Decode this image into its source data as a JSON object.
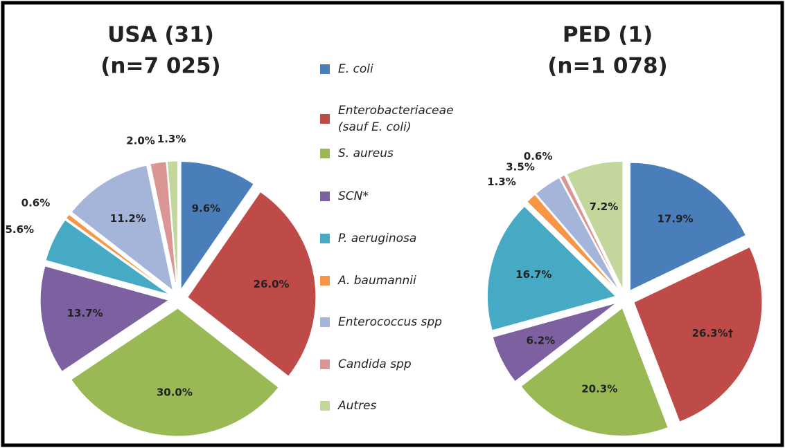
{
  "chart_data": {
    "type": "pie",
    "categories": [
      "E. coli",
      "Enterobacteriaceae (sauf E. coli)",
      "S. aureus",
      "SCN*",
      "P. aeruginosa",
      "A. baumannii",
      "Enterococcus spp",
      "Candida spp",
      "Autres"
    ],
    "colors": [
      "#4a7ebb",
      "#be4b48",
      "#98b954",
      "#7d60a0",
      "#46aac5",
      "#f79646",
      "#a5b5d9",
      "#d99694",
      "#c3d69b"
    ],
    "pies": [
      {
        "title": "USA (31)",
        "subtitle": "(n=7 025)",
        "values": [
          9.6,
          26.0,
          30.0,
          13.7,
          5.6,
          0.6,
          11.2,
          2.0,
          1.3
        ],
        "value_labels": [
          "9.6%",
          "26.0%",
          "30.0%",
          "13.7%",
          "5.6%",
          "0.6%",
          "11.2%",
          "2.0%",
          "1.3%"
        ]
      },
      {
        "title": "PED (1)",
        "subtitle": "(n=1 078)",
        "values": [
          17.9,
          26.3,
          20.3,
          6.2,
          16.7,
          1.3,
          3.5,
          0.6,
          7.2
        ],
        "value_labels": [
          "17.9%",
          "26.3%†",
          "20.3%",
          "6.2%",
          "16.7%",
          "1.3%",
          "3.5%",
          "0.6%",
          "7.2%"
        ]
      }
    ]
  }
}
